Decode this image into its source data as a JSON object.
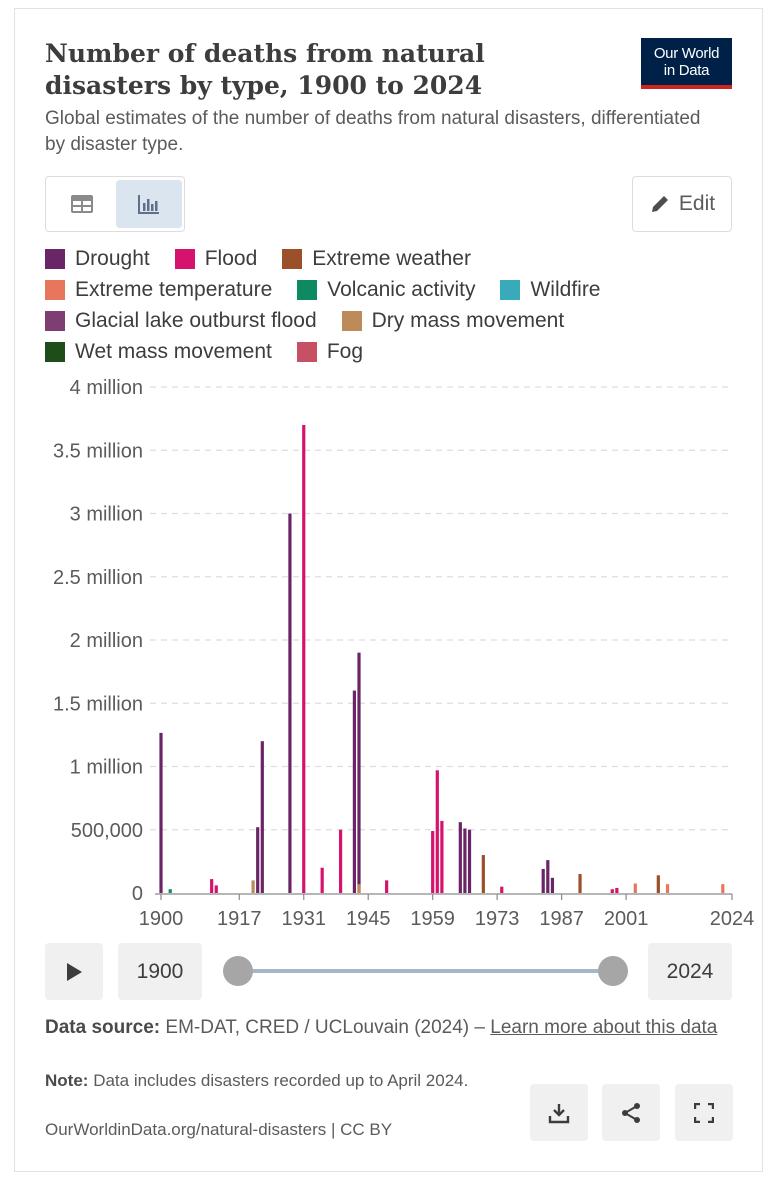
{
  "header": {
    "title": "Number of deaths from natural disasters by type, 1900 to 2024",
    "subtitle": "Global estimates of the number of deaths from natural disasters, differentiated by disaster type.",
    "logo_line1": "Our World",
    "logo_line2": "in Data"
  },
  "controls": {
    "edit_label": "Edit",
    "table_icon": "table-icon",
    "chart_icon": "bar-chart-icon",
    "edit_icon": "pencil-icon"
  },
  "legend": [
    {
      "label": "Drought",
      "color": "#6a2566"
    },
    {
      "label": "Flood",
      "color": "#d5136d"
    },
    {
      "label": "Extreme weather",
      "color": "#9a512b"
    },
    {
      "label": "Extreme temperature",
      "color": "#e8765d"
    },
    {
      "label": "Volcanic activity",
      "color": "#0e8a62"
    },
    {
      "label": "Wildfire",
      "color": "#38aab9"
    },
    {
      "label": "Glacial lake outburst flood",
      "color": "#7f3e73"
    },
    {
      "label": "Dry mass movement",
      "color": "#bf8a5a"
    },
    {
      "label": "Wet mass movement",
      "color": "#1f4d1a"
    },
    {
      "label": "Fog",
      "color": "#c65064"
    }
  ],
  "chart_data": {
    "type": "bar",
    "x_ticks": [
      "1900",
      "1917",
      "1931",
      "1945",
      "1959",
      "1973",
      "1987",
      "2001",
      "2024"
    ],
    "y_ticks": [
      "0",
      "500,000",
      "1 million",
      "1.5 million",
      "2 million",
      "2.5 million",
      "3 million",
      "3.5 million",
      "4 million"
    ],
    "ylim": [
      0,
      4000000
    ],
    "xlim": [
      1900,
      2024
    ],
    "grid": true,
    "series": [
      {
        "name": "Drought",
        "color": "#6a2566",
        "x": [
          1900,
          1921,
          1922,
          1928,
          1942,
          1943,
          1965,
          1966,
          1967,
          1983,
          1984,
          1985
        ],
        "values": [
          1266000,
          520000,
          1200000,
          3000000,
          1600000,
          1900000,
          560000,
          510000,
          500000,
          190000,
          260000,
          120000
        ]
      },
      {
        "name": "Flood",
        "color": "#d5136d",
        "x": [
          1911,
          1912,
          1931,
          1935,
          1939,
          1949,
          1959,
          1960,
          1961,
          1974,
          1998,
          1999
        ],
        "values": [
          110000,
          60000,
          3700000,
          200000,
          500000,
          100000,
          490000,
          970000,
          570000,
          50000,
          30000,
          40000
        ]
      },
      {
        "name": "Extreme weather",
        "color": "#9a512b",
        "x": [
          1970,
          1991,
          2008
        ],
        "values": [
          300000,
          150000,
          140000
        ]
      },
      {
        "name": "Extreme temperature",
        "color": "#e8765d",
        "x": [
          2003,
          2010,
          2022
        ],
        "values": [
          75000,
          70000,
          70000
        ]
      },
      {
        "name": "Volcanic activity",
        "color": "#0e8a62",
        "x": [
          1902
        ],
        "values": [
          30000
        ]
      },
      {
        "name": "Dry mass movement",
        "color": "#bf8a5a",
        "x": [
          1920,
          1943
        ],
        "values": [
          100000,
          70000
        ]
      }
    ]
  },
  "timeline": {
    "start_year": "1900",
    "end_year": "2024",
    "play_icon": "play-icon"
  },
  "footer": {
    "source_label": "Data source:",
    "source_text": "EM-DAT, CRED / UCLouvain (2024) –",
    "source_link": "Learn more about this data",
    "note_label": "Note:",
    "note_text": "Data includes disasters recorded up to April 2024.",
    "url": "OurWorldinData.org/natural-disasters | CC BY",
    "download_icon": "download-icon",
    "share_icon": "share-icon",
    "fullscreen_icon": "fullscreen-icon"
  }
}
